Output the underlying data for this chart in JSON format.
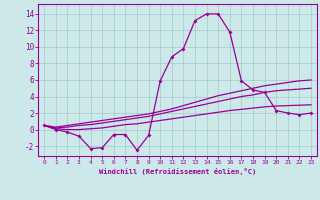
{
  "xlabel": "Windchill (Refroidissement éolien,°C)",
  "background_color": "#cce8e8",
  "grid_color": "#aacece",
  "line_color": "#990099",
  "xlim": [
    -0.5,
    23.5
  ],
  "ylim": [
    -3.2,
    15.2
  ],
  "yticks": [
    -2,
    0,
    2,
    4,
    6,
    8,
    10,
    12,
    14
  ],
  "xticks": [
    0,
    1,
    2,
    3,
    4,
    5,
    6,
    7,
    8,
    9,
    10,
    11,
    12,
    13,
    14,
    15,
    16,
    17,
    18,
    19,
    20,
    21,
    22,
    23
  ],
  "series1_x": [
    0,
    1,
    2,
    3,
    4,
    5,
    6,
    7,
    8,
    9,
    10,
    11,
    12,
    13,
    14,
    15,
    16,
    17,
    18,
    19,
    20,
    21,
    22,
    23
  ],
  "series1_y": [
    0.5,
    0.0,
    -0.3,
    -0.8,
    -2.3,
    -2.2,
    -0.6,
    -0.6,
    -2.5,
    -0.7,
    5.9,
    8.8,
    9.8,
    13.2,
    14.0,
    14.0,
    11.8,
    5.9,
    4.8,
    4.5,
    2.3,
    2.0,
    1.8,
    2.0
  ],
  "series2_x": [
    0,
    1,
    2,
    3,
    4,
    5,
    6,
    7,
    8,
    9,
    10,
    11,
    12,
    13,
    14,
    15,
    16,
    17,
    18,
    19,
    20,
    21,
    22,
    23
  ],
  "series2_y": [
    0.5,
    0.3,
    0.5,
    0.7,
    0.9,
    1.1,
    1.3,
    1.5,
    1.7,
    1.9,
    2.2,
    2.5,
    2.9,
    3.3,
    3.7,
    4.1,
    4.4,
    4.7,
    5.0,
    5.3,
    5.5,
    5.7,
    5.9,
    6.0
  ],
  "series3_x": [
    0,
    1,
    2,
    3,
    4,
    5,
    6,
    7,
    8,
    9,
    10,
    11,
    12,
    13,
    14,
    15,
    16,
    17,
    18,
    19,
    20,
    21,
    22,
    23
  ],
  "series3_y": [
    0.5,
    0.2,
    0.3,
    0.5,
    0.6,
    0.8,
    1.0,
    1.2,
    1.4,
    1.6,
    1.9,
    2.2,
    2.5,
    2.8,
    3.1,
    3.4,
    3.7,
    4.0,
    4.2,
    4.5,
    4.7,
    4.8,
    4.9,
    5.0
  ],
  "series4_x": [
    0,
    1,
    2,
    3,
    4,
    5,
    6,
    7,
    8,
    9,
    10,
    11,
    12,
    13,
    14,
    15,
    16,
    17,
    18,
    19,
    20,
    21,
    22,
    23
  ],
  "series4_y": [
    0.5,
    0.1,
    0.0,
    0.0,
    0.1,
    0.2,
    0.4,
    0.6,
    0.7,
    0.9,
    1.1,
    1.3,
    1.5,
    1.7,
    1.9,
    2.1,
    2.3,
    2.45,
    2.6,
    2.75,
    2.85,
    2.9,
    2.95,
    3.0
  ]
}
